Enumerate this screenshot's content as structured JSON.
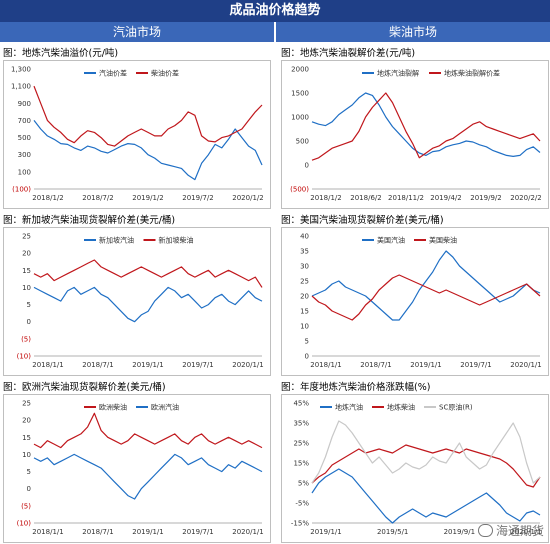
{
  "header": {
    "title": "成品油价格趋势",
    "left_section": "汽油市场",
    "right_section": "柴油市场"
  },
  "colors": {
    "blue": "#1f6fc5",
    "red": "#c0171c",
    "gray": "#c8c8c8"
  },
  "chart_data": [
    {
      "id": "p1",
      "type": "line",
      "title": "图：地炼汽柴油溢价(元/吨)",
      "xticks": [
        "2018/1/2",
        "2018/7/2",
        "2019/1/2",
        "2019/7/2",
        "2020/1/2"
      ],
      "ylim": [
        -100,
        1300
      ],
      "yticks": [
        "1,300",
        "1,100",
        "900",
        "700",
        "500",
        "300",
        "100",
        "(100)"
      ],
      "series": [
        {
          "name": "汽油价差",
          "color": "blue",
          "values": [
            700,
            600,
            520,
            480,
            430,
            420,
            380,
            350,
            400,
            380,
            340,
            320,
            360,
            400,
            430,
            420,
            380,
            300,
            260,
            200,
            180,
            160,
            140,
            60,
            10,
            200,
            300,
            420,
            380,
            480,
            600,
            500,
            400,
            350,
            180
          ]
        },
        {
          "name": "柴油价差",
          "color": "red",
          "values": [
            1100,
            900,
            700,
            620,
            560,
            480,
            440,
            520,
            580,
            560,
            500,
            420,
            400,
            460,
            520,
            560,
            600,
            560,
            520,
            520,
            600,
            640,
            700,
            800,
            760,
            520,
            460,
            450,
            500,
            520,
            560,
            600,
            700,
            800,
            880
          ]
        }
      ]
    },
    {
      "id": "p2",
      "type": "line",
      "title": "图：地炼汽柴油裂解价差(元/吨)",
      "xticks": [
        "2018/1/2",
        "2018/6/2",
        "2018/11/2",
        "2019/4/2",
        "2019/9/2",
        "2020/2/2"
      ],
      "ylim": [
        -500,
        2000
      ],
      "yticks": [
        "2000",
        "1500",
        "1000",
        "500",
        "0",
        "(500)"
      ],
      "series": [
        {
          "name": "地炼汽油裂解",
          "color": "blue",
          "values": [
            900,
            850,
            820,
            900,
            1050,
            1150,
            1250,
            1400,
            1500,
            1450,
            1250,
            1000,
            800,
            650,
            500,
            350,
            250,
            200,
            280,
            300,
            380,
            420,
            450,
            500,
            480,
            420,
            380,
            300,
            250,
            200,
            180,
            200,
            320,
            380,
            260
          ]
        },
        {
          "name": "地炼柴油裂解价差",
          "color": "red",
          "values": [
            100,
            150,
            250,
            350,
            400,
            450,
            500,
            700,
            1000,
            1200,
            1350,
            1500,
            1300,
            1000,
            700,
            450,
            150,
            250,
            350,
            400,
            500,
            550,
            650,
            750,
            850,
            900,
            800,
            750,
            700,
            650,
            600,
            550,
            600,
            650,
            500
          ]
        }
      ]
    },
    {
      "id": "p3",
      "type": "line",
      "title": "图：新加坡汽柴油现货裂解价差(美元/桶)",
      "xticks": [
        "2018/1/1",
        "2018/7/1",
        "2019/1/1",
        "2019/7/1",
        "2020/1/1"
      ],
      "ylim": [
        -10,
        25
      ],
      "yticks": [
        "25",
        "20",
        "15",
        "10",
        "5",
        "0",
        "(5)",
        "(10)"
      ],
      "series": [
        {
          "name": "新加坡汽油",
          "color": "blue",
          "values": [
            10,
            9,
            8,
            7,
            6,
            9,
            10,
            8,
            9,
            10,
            8,
            7,
            5,
            3,
            1,
            0,
            2,
            3,
            6,
            8,
            10,
            9,
            7,
            8,
            6,
            4,
            5,
            7,
            8,
            6,
            5,
            7,
            9,
            7,
            6
          ]
        },
        {
          "name": "新加坡柴油",
          "color": "red",
          "values": [
            14,
            13,
            14,
            12,
            13,
            14,
            15,
            16,
            17,
            18,
            16,
            15,
            14,
            13,
            14,
            15,
            16,
            15,
            14,
            13,
            14,
            15,
            16,
            14,
            13,
            14,
            15,
            13,
            14,
            15,
            14,
            13,
            12,
            13,
            10
          ]
        }
      ]
    },
    {
      "id": "p4",
      "type": "line",
      "title": "图：美国汽柴油现货裂解价差(美元/桶)",
      "xticks": [
        "2018/1/1",
        "2018/7/1",
        "2019/1/1",
        "2019/7/1",
        "2020/1/1"
      ],
      "ylim": [
        0,
        40
      ],
      "yticks": [
        "40",
        "35",
        "30",
        "25",
        "20",
        "15",
        "10",
        "5",
        "0"
      ],
      "series": [
        {
          "name": "美国汽油",
          "color": "blue",
          "values": [
            20,
            21,
            22,
            24,
            25,
            23,
            22,
            21,
            20,
            18,
            16,
            14,
            12,
            12,
            15,
            18,
            22,
            25,
            28,
            32,
            35,
            33,
            30,
            28,
            26,
            24,
            22,
            20,
            18,
            19,
            20,
            22,
            24,
            22,
            21
          ]
        },
        {
          "name": "美国柴油",
          "color": "red",
          "values": [
            20,
            18,
            17,
            15,
            14,
            13,
            12,
            14,
            17,
            19,
            22,
            24,
            26,
            27,
            26,
            25,
            24,
            23,
            22,
            21,
            22,
            21,
            20,
            19,
            18,
            17,
            18,
            19,
            20,
            21,
            22,
            23,
            24,
            22,
            20
          ]
        }
      ]
    },
    {
      "id": "p5",
      "type": "line",
      "title": "图：欧洲汽柴油现货裂解价差(美元/桶)",
      "xticks": [
        "2018/1/1",
        "2018/7/1",
        "2019/1/1",
        "2019/7/1",
        "2020/1/1"
      ],
      "ylim": [
        -10,
        25
      ],
      "yticks": [
        "25",
        "20",
        "15",
        "10",
        "5",
        "0",
        "(5)",
        "(10)"
      ],
      "series": [
        {
          "name": "欧洲柴油",
          "color": "red",
          "values": [
            13,
            12,
            14,
            13,
            12,
            14,
            15,
            16,
            18,
            22,
            17,
            15,
            14,
            13,
            14,
            16,
            15,
            14,
            13,
            14,
            15,
            16,
            14,
            13,
            15,
            16,
            14,
            13,
            14,
            15,
            14,
            13,
            14,
            13,
            12
          ]
        },
        {
          "name": "欧洲汽油",
          "color": "blue",
          "values": [
            9,
            8,
            9,
            7,
            8,
            9,
            10,
            9,
            8,
            7,
            6,
            4,
            2,
            0,
            -2,
            -3,
            0,
            2,
            4,
            6,
            8,
            10,
            9,
            7,
            8,
            9,
            7,
            6,
            5,
            7,
            6,
            8,
            7,
            6,
            5
          ]
        }
      ]
    },
    {
      "id": "p6",
      "type": "line",
      "title": "图：年度地炼汽柴油价格涨跌幅(%)",
      "xticks": [
        "2019/1/1",
        "2019/5/1",
        "2019/9/1",
        "2020/1/1"
      ],
      "ylim": [
        -15,
        45
      ],
      "yticks": [
        "45%",
        "35%",
        "25%",
        "15%",
        "5%",
        "-5%",
        "-15%"
      ],
      "series": [
        {
          "name": "地炼汽油",
          "color": "blue",
          "values": [
            0,
            5,
            8,
            10,
            12,
            10,
            8,
            4,
            0,
            -4,
            -8,
            -12,
            -15,
            -12,
            -10,
            -8,
            -10,
            -12,
            -10,
            -11,
            -12,
            -10,
            -8,
            -6,
            -4,
            -2,
            0,
            -3,
            -6,
            -10,
            -12,
            -14,
            -10,
            -9,
            -11
          ]
        },
        {
          "name": "地炼柴油",
          "color": "red",
          "values": [
            5,
            8,
            10,
            14,
            16,
            18,
            20,
            22,
            20,
            21,
            22,
            21,
            20,
            22,
            24,
            23,
            22,
            21,
            20,
            21,
            22,
            21,
            20,
            22,
            21,
            20,
            19,
            18,
            17,
            15,
            12,
            8,
            4,
            3,
            8
          ]
        },
        {
          "name": "SC原油(R)",
          "color": "gray",
          "values": [
            5,
            10,
            18,
            28,
            36,
            34,
            30,
            25,
            20,
            15,
            18,
            14,
            10,
            12,
            15,
            13,
            12,
            14,
            18,
            16,
            15,
            20,
            25,
            18,
            15,
            12,
            14,
            20,
            25,
            30,
            35,
            28,
            15,
            5,
            8
          ]
        }
      ]
    }
  ],
  "watermark": {
    "text": "海通期货"
  }
}
